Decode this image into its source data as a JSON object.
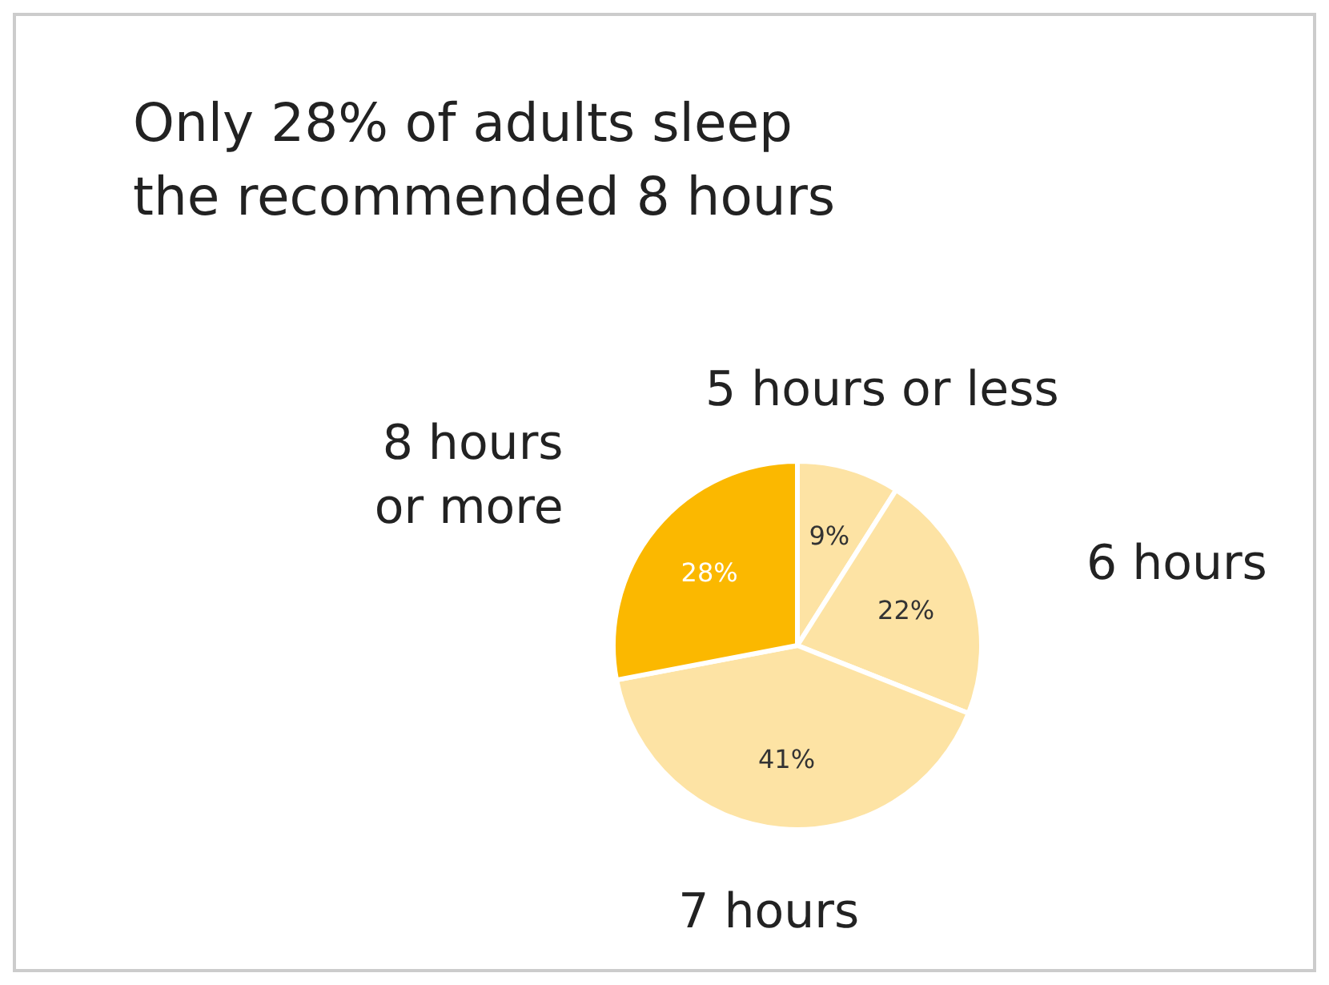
{
  "chart_data": {
    "type": "pie",
    "title": "Only 28% of adults sleep the recommended 8 hours",
    "categories": [
      "5 hours or less",
      "6 hours",
      "7 hours",
      "8 hours or more"
    ],
    "values": [
      9,
      22,
      41,
      28
    ],
    "value_labels": [
      "9%",
      "22%",
      "41%",
      "28%"
    ],
    "colors": [
      "#fde3a4",
      "#fde3a4",
      "#fde3a4",
      "#fbb800"
    ]
  }
}
